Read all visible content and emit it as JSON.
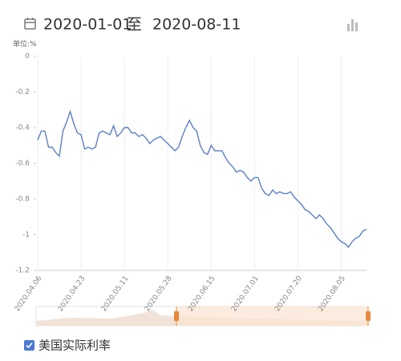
{
  "header": {
    "start": "2020-01-01",
    "separator": "至",
    "end": "2020-08-11"
  },
  "chart_data": {
    "type": "line",
    "unit": "单位:%",
    "categories": [
      "2020.04.06",
      null,
      null,
      null,
      null,
      null,
      null,
      null,
      null,
      null,
      null,
      null,
      "2020.04.23",
      null,
      null,
      null,
      null,
      null,
      null,
      null,
      null,
      null,
      null,
      null,
      "2020.05.11",
      null,
      null,
      null,
      null,
      null,
      null,
      null,
      null,
      null,
      null,
      null,
      "2020.05.28",
      null,
      null,
      null,
      null,
      null,
      null,
      null,
      null,
      null,
      null,
      null,
      "2020.06.15",
      null,
      null,
      null,
      null,
      null,
      null,
      null,
      null,
      null,
      null,
      null,
      "2020.07.01",
      null,
      null,
      null,
      null,
      null,
      null,
      null,
      null,
      null,
      null,
      null,
      "2020.07.20",
      null,
      null,
      null,
      null,
      null,
      null,
      null,
      null,
      null,
      null,
      null,
      "2020.08.05",
      null,
      null,
      null,
      null,
      null,
      null,
      null
    ],
    "series": [
      {
        "name": "美国实际利率",
        "color": "#5b7fc7",
        "values": [
          -0.47,
          -0.42,
          -0.42,
          -0.51,
          -0.51,
          -0.54,
          -0.56,
          -0.42,
          -0.37,
          -0.31,
          -0.38,
          -0.43,
          -0.44,
          -0.52,
          -0.51,
          -0.52,
          -0.51,
          -0.43,
          -0.42,
          -0.43,
          -0.44,
          -0.39,
          -0.45,
          -0.43,
          -0.4,
          -0.4,
          -0.43,
          -0.43,
          -0.45,
          -0.44,
          -0.46,
          -0.49,
          -0.47,
          -0.46,
          -0.45,
          -0.47,
          -0.49,
          -0.51,
          -0.53,
          -0.51,
          -0.45,
          -0.4,
          -0.36,
          -0.4,
          -0.42,
          -0.5,
          -0.54,
          -0.55,
          -0.5,
          -0.53,
          -0.53,
          -0.53,
          -0.57,
          -0.6,
          -0.62,
          -0.65,
          -0.64,
          -0.65,
          -0.68,
          -0.7,
          -0.68,
          -0.68,
          -0.74,
          -0.77,
          -0.78,
          -0.75,
          -0.77,
          -0.76,
          -0.77,
          -0.77,
          -0.76,
          -0.79,
          -0.81,
          -0.83,
          -0.86,
          -0.87,
          -0.89,
          -0.91,
          -0.89,
          -0.91,
          -0.94,
          -0.96,
          -0.99,
          -1.02,
          -1.04,
          -1.05,
          -1.07,
          -1.04,
          -1.02,
          -1.01,
          -0.98,
          -0.97
        ]
      }
    ],
    "ylim": [
      -1.2,
      0
    ],
    "yticks": [
      0,
      -0.2,
      -0.4,
      -0.6,
      -0.8,
      -1,
      -1.2
    ]
  }
}
